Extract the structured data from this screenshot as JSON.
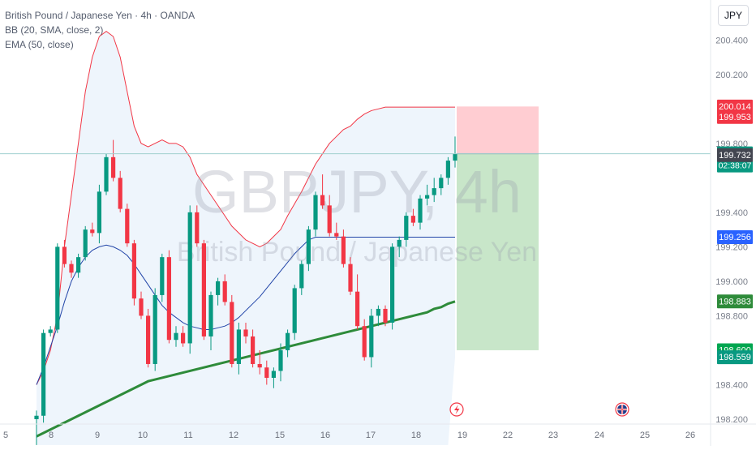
{
  "header": {
    "symbol_line": "British Pound / Japanese Yen · 4h · OANDA",
    "bb_line": "BB (20, SMA, close, 2)",
    "ema_line": "EMA (50, close)",
    "currency_button": "JPY"
  },
  "watermark": {
    "ticker": "GBPJPY, 4h",
    "name": "British Pound / Japanese Yen"
  },
  "colors": {
    "up": "#089981",
    "down": "#f23645",
    "bb_band": "#f23645",
    "bb_basis": "#2245a8",
    "ema": "#2e8b3a",
    "current_line": "#9fcfcf",
    "target_zone": "#c8e6c9",
    "stop_zone": "#ffcdd2",
    "bb_fill": "#eef5fc"
  },
  "chart_data": {
    "type": "candlestick",
    "title": "British Pound / Japanese Yen · 4h · OANDA",
    "ylim": [
      198.2,
      200.5
    ],
    "y_ticks": [
      "200.400",
      "200.200",
      "199.800",
      "199.400",
      "199.200",
      "199.000",
      "198.800",
      "198.400",
      "198.200"
    ],
    "x_ticks": [
      "5",
      "8",
      "9",
      "10",
      "11",
      "12",
      "15",
      "16",
      "17",
      "18",
      "19",
      "22",
      "23",
      "24",
      "25",
      "26"
    ],
    "ohlc": [
      [
        198.2,
        198.25,
        198.05,
        198.22
      ],
      [
        198.22,
        198.72,
        198.18,
        198.7
      ],
      [
        198.7,
        198.74,
        198.68,
        198.72
      ],
      [
        198.72,
        199.22,
        198.7,
        199.2
      ],
      [
        199.2,
        199.24,
        199.08,
        199.1
      ],
      [
        199.1,
        199.12,
        199.02,
        199.05
      ],
      [
        199.05,
        199.16,
        199.02,
        199.14
      ],
      [
        199.14,
        199.32,
        199.12,
        199.3
      ],
      [
        199.3,
        199.34,
        199.26,
        199.28
      ],
      [
        199.28,
        199.56,
        199.22,
        199.52
      ],
      [
        199.52,
        199.74,
        199.5,
        199.72
      ],
      [
        199.72,
        199.82,
        199.58,
        199.6
      ],
      [
        199.6,
        199.64,
        199.4,
        199.42
      ],
      [
        199.42,
        199.45,
        199.2,
        199.22
      ],
      [
        199.22,
        199.24,
        198.86,
        198.9
      ],
      [
        198.9,
        198.94,
        198.78,
        198.8
      ],
      [
        198.8,
        198.84,
        198.5,
        198.52
      ],
      [
        198.52,
        198.96,
        198.48,
        198.92
      ],
      [
        198.92,
        199.16,
        198.88,
        199.14
      ],
      [
        199.14,
        199.18,
        198.64,
        198.66
      ],
      [
        198.66,
        198.74,
        198.62,
        198.7
      ],
      [
        198.7,
        198.74,
        198.62,
        198.64
      ],
      [
        198.64,
        199.44,
        198.58,
        199.4
      ],
      [
        199.4,
        199.44,
        199.2,
        199.22
      ],
      [
        199.22,
        199.24,
        198.66,
        198.68
      ],
      [
        198.68,
        198.94,
        198.6,
        198.92
      ],
      [
        198.92,
        199.02,
        198.86,
        199.0
      ],
      [
        199.0,
        199.04,
        198.86,
        198.88
      ],
      [
        198.88,
        198.92,
        198.5,
        198.52
      ],
      [
        198.52,
        198.76,
        198.46,
        198.72
      ],
      [
        198.72,
        198.76,
        198.64,
        198.68
      ],
      [
        198.68,
        198.72,
        198.5,
        198.52
      ],
      [
        198.52,
        198.6,
        198.46,
        198.5
      ],
      [
        198.5,
        198.54,
        198.4,
        198.44
      ],
      [
        198.44,
        198.5,
        198.38,
        198.48
      ],
      [
        198.48,
        198.64,
        198.42,
        198.6
      ],
      [
        198.6,
        198.72,
        198.56,
        198.7
      ],
      [
        198.7,
        198.98,
        198.66,
        198.96
      ],
      [
        198.96,
        199.12,
        198.92,
        199.1
      ],
      [
        199.1,
        199.32,
        199.06,
        199.3
      ],
      [
        199.3,
        199.52,
        199.26,
        199.5
      ],
      [
        199.5,
        199.62,
        199.42,
        199.44
      ],
      [
        199.44,
        199.5,
        199.26,
        199.28
      ],
      [
        199.28,
        199.34,
        199.24,
        199.26
      ],
      [
        199.26,
        199.3,
        199.08,
        199.1
      ],
      [
        199.1,
        199.14,
        198.92,
        198.94
      ],
      [
        198.94,
        199.04,
        198.72,
        198.74
      ],
      [
        198.74,
        198.78,
        198.54,
        198.56
      ],
      [
        198.56,
        198.84,
        198.5,
        198.8
      ],
      [
        198.8,
        198.86,
        198.74,
        198.84
      ],
      [
        198.84,
        198.86,
        198.74,
        198.76
      ],
      [
        198.76,
        199.22,
        198.72,
        199.2
      ],
      [
        199.2,
        199.26,
        199.14,
        199.24
      ],
      [
        199.24,
        199.4,
        199.2,
        199.38
      ],
      [
        199.38,
        199.42,
        199.32,
        199.34
      ],
      [
        199.34,
        199.5,
        199.3,
        199.48
      ],
      [
        199.48,
        199.56,
        199.44,
        199.5
      ],
      [
        199.5,
        199.6,
        199.46,
        199.54
      ],
      [
        199.54,
        199.62,
        199.5,
        199.6
      ],
      [
        199.6,
        199.72,
        199.56,
        199.7
      ],
      [
        199.7,
        199.84,
        199.66,
        199.74
      ]
    ],
    "bb_upper": [
      198.4,
      198.48,
      198.6,
      198.8,
      199.2,
      199.5,
      199.8,
      200.1,
      200.3,
      200.42,
      200.45,
      200.42,
      200.3,
      200.1,
      199.9,
      199.8,
      199.78,
      199.8,
      199.82,
      199.8,
      199.8,
      199.78,
      199.72,
      199.62,
      199.56,
      199.5,
      199.44,
      199.38,
      199.32,
      199.28,
      199.24,
      199.22,
      199.2,
      199.22,
      199.26,
      199.3,
      199.38,
      199.45,
      199.52,
      199.6,
      199.68,
      199.74,
      199.8,
      199.84,
      199.88,
      199.9,
      199.94,
      199.97,
      199.99,
      200.0,
      200.01,
      200.01,
      200.01,
      200.01,
      200.01,
      200.01,
      200.01,
      200.01,
      200.01,
      200.01,
      200.01
    ],
    "bb_basis": [
      198.4,
      198.5,
      198.62,
      198.74,
      198.88,
      199.0,
      199.08,
      199.14,
      199.18,
      199.2,
      199.21,
      199.2,
      199.18,
      199.15,
      199.1,
      199.04,
      198.98,
      198.92,
      198.86,
      198.82,
      198.79,
      198.76,
      198.74,
      198.73,
      198.72,
      198.72,
      198.73,
      198.74,
      198.76,
      198.79,
      198.83,
      198.87,
      198.91,
      198.96,
      199.01,
      199.06,
      199.11,
      199.16,
      199.2,
      199.24,
      199.256,
      199.256,
      199.256,
      199.256,
      199.256,
      199.256,
      199.256,
      199.256,
      199.256,
      199.256,
      199.256,
      199.256,
      199.256,
      199.256,
      199.256,
      199.256,
      199.256,
      199.256,
      199.256,
      199.256,
      199.256
    ],
    "bb_lower": [
      198.05,
      198.05,
      198.05,
      198.05,
      198.05,
      198.05,
      198.05,
      198.05,
      198.05,
      198.05,
      198.05,
      198.05,
      198.05,
      198.05,
      198.05,
      198.05,
      198.05,
      198.05,
      198.05,
      198.05,
      198.05,
      198.05,
      198.05,
      198.05,
      198.05,
      198.05,
      198.05,
      198.05,
      198.05,
      198.05,
      198.05,
      198.05,
      198.05,
      198.05,
      198.05,
      198.05,
      198.05,
      198.05,
      198.05,
      198.05,
      198.05,
      198.05,
      198.05,
      198.05,
      198.05,
      198.05,
      198.05,
      198.05,
      198.05,
      198.05,
      198.05,
      198.05,
      198.05,
      198.05,
      198.05,
      198.05,
      198.05,
      198.05,
      198.05,
      198.05,
      198.559
    ],
    "ema": [
      198.1,
      198.12,
      198.14,
      198.16,
      198.18,
      198.2,
      198.22,
      198.24,
      198.26,
      198.28,
      198.3,
      198.32,
      198.34,
      198.36,
      198.38,
      198.4,
      198.42,
      198.43,
      198.44,
      198.45,
      198.46,
      198.47,
      198.48,
      198.49,
      198.5,
      198.51,
      198.52,
      198.53,
      198.54,
      198.55,
      198.56,
      198.57,
      198.58,
      198.59,
      198.6,
      198.61,
      198.62,
      198.63,
      198.64,
      198.65,
      198.66,
      198.67,
      198.68,
      198.69,
      198.7,
      198.71,
      198.72,
      198.73,
      198.74,
      198.75,
      198.76,
      198.77,
      198.78,
      198.79,
      198.8,
      198.81,
      198.82,
      198.84,
      198.85,
      198.87,
      198.883
    ],
    "position": {
      "entry": 199.74,
      "stop": 200.014,
      "target": 198.6
    },
    "price_labels": [
      {
        "text": "200.014",
        "value": 200.014,
        "color": "#f23645"
      },
      {
        "text": "199.953",
        "value": 199.953,
        "color": "#f23645"
      },
      {
        "text": "199.740",
        "value": 199.74,
        "color": "#089981",
        "sub": "02:38:07"
      },
      {
        "text": "199.732",
        "value": 199.732,
        "color": "#434651"
      },
      {
        "text": "199.256",
        "value": 199.256,
        "color": "#2962ff"
      },
      {
        "text": "198.883",
        "value": 198.883,
        "color": "#2e8b3a"
      },
      {
        "text": "198.600",
        "value": 198.6,
        "color": "#00a650"
      },
      {
        "text": "198.559",
        "value": 198.559,
        "color": "#089981"
      }
    ]
  }
}
